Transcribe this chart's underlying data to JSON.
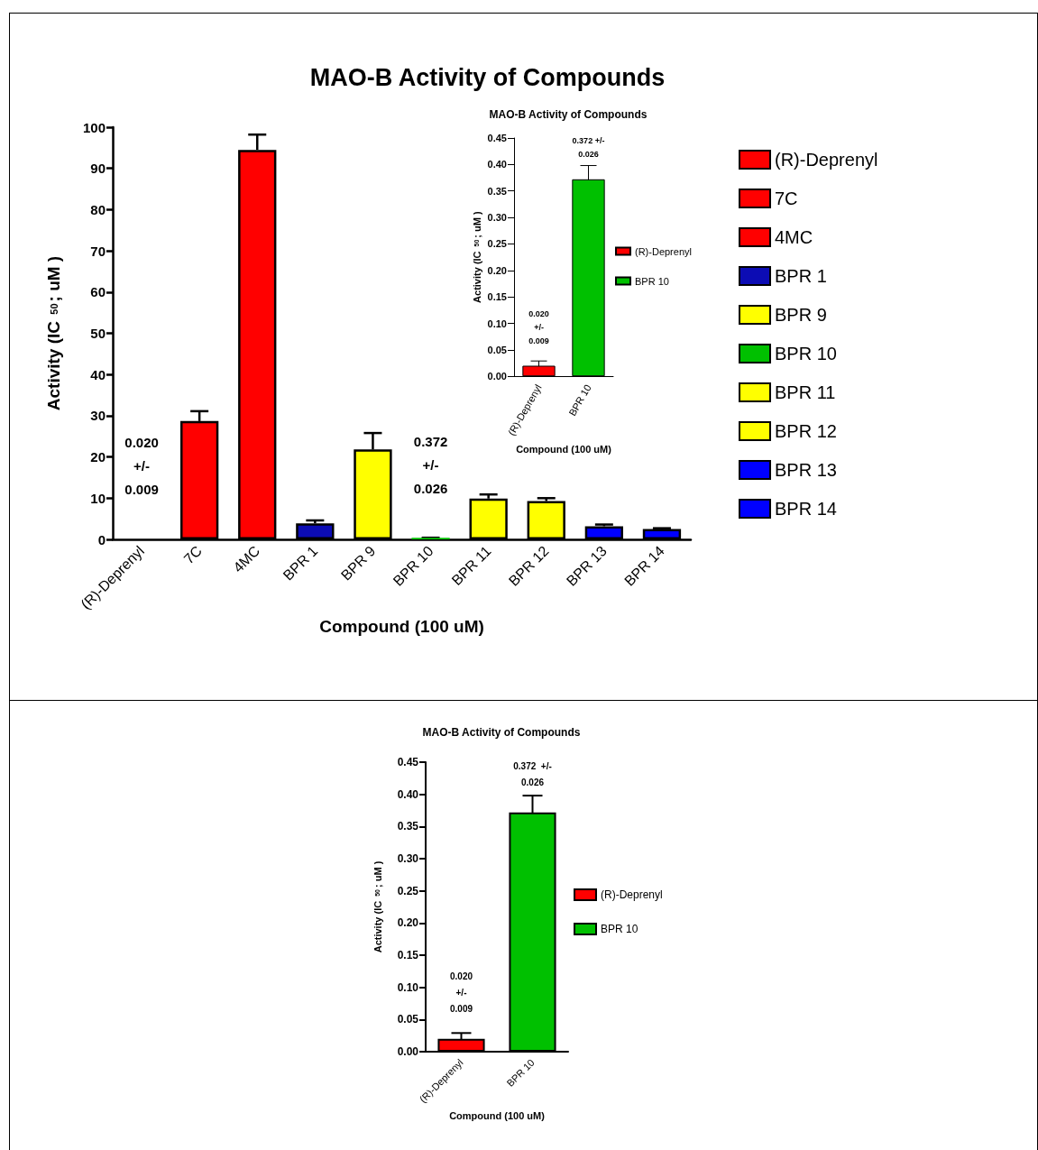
{
  "chart_data": [
    {
      "type": "bar",
      "title": "MAO-B Activity of Compounds",
      "xlabel": "Compound (100 uM)",
      "ylabel": "Activity (IC $_{50}$; uM )",
      "categories": [
        "(R)-Deprenyl",
        "7C",
        "4MC",
        "BPR 1",
        "BPR 9",
        "BPR 10",
        "BPR 11",
        "BPR 12",
        "BPR 13",
        "BPR 14"
      ],
      "stacked": true,
      "series": [
        {
          "name": "(R)-Deprenyl",
          "color": "#ff0000",
          "values": [
            0.02,
            null,
            null,
            null,
            null,
            null,
            null,
            null,
            null,
            null
          ],
          "value_labels": [
            "0.020\n+/-\n0.009",
            null,
            null,
            null,
            null,
            null,
            null,
            null,
            null,
            null
          ]
        },
        {
          "name": "7C",
          "color": "#ff0000",
          "values": [
            null,
            28.7,
            null,
            null,
            null,
            null,
            null,
            null,
            null,
            null
          ],
          "errors": [
            null,
            [
              28.7,
              31.1
            ],
            null,
            null,
            null,
            null,
            null,
            null,
            null,
            null
          ]
        },
        {
          "name": "4MC",
          "color": "#ff0000",
          "values": [
            null,
            null,
            94.5,
            null,
            null,
            null,
            null,
            null,
            null,
            null
          ],
          "errors": [
            null,
            null,
            [
              94.5,
              98.2
            ],
            null,
            null,
            null,
            null,
            null,
            null,
            null
          ]
        },
        {
          "name": "BPR 1",
          "color": "#0c0cb4",
          "values": [
            null,
            null,
            null,
            3.9,
            null,
            null,
            null,
            null,
            null,
            null
          ],
          "errors": [
            null,
            null,
            null,
            [
              3.9,
              4.6
            ],
            null,
            null,
            null,
            null,
            null,
            null
          ]
        },
        {
          "name": "BPR 9",
          "color": "#ffff00",
          "values": [
            null,
            null,
            null,
            null,
            21.8,
            null,
            null,
            null,
            null,
            null
          ],
          "errors": [
            null,
            null,
            null,
            null,
            [
              21.8,
              25.8
            ],
            null,
            null,
            null,
            null,
            null
          ]
        },
        {
          "name": "BPR 10",
          "color": "#00c000",
          "values": [
            null,
            null,
            null,
            null,
            null,
            0.372,
            null,
            null,
            null,
            null
          ],
          "errors": [
            null,
            null,
            null,
            null,
            null,
            0.026,
            null,
            null,
            null,
            null
          ],
          "value_labels": [
            null,
            null,
            null,
            null,
            null,
            "0.372\n+/-\n0.026",
            null,
            null,
            null,
            null
          ]
        },
        {
          "name": "BPR 11",
          "color": "#ffff00",
          "values": [
            null,
            null,
            null,
            null,
            null,
            null,
            9.9,
            null,
            null,
            null
          ],
          "errors": [
            null,
            null,
            null,
            null,
            null,
            null,
            [
              9.9,
              10.9
            ],
            null,
            null,
            null
          ]
        },
        {
          "name": "BPR 12",
          "color": "#ffff00",
          "values": [
            null,
            null,
            null,
            null,
            null,
            null,
            null,
            9.3,
            null,
            null
          ],
          "errors": [
            null,
            null,
            null,
            null,
            null,
            null,
            null,
            [
              9.3,
              10.0
            ],
            null,
            null
          ]
        },
        {
          "name": "BPR 13",
          "color": "#0000ff",
          "values": [
            null,
            null,
            null,
            null,
            null,
            null,
            null,
            null,
            3.2,
            null
          ],
          "errors": [
            null,
            null,
            null,
            null,
            null,
            null,
            null,
            null,
            [
              3.2,
              3.6
            ],
            null
          ]
        },
        {
          "name": "BPR 14",
          "color": "#0000ff",
          "values": [
            null,
            null,
            null,
            null,
            null,
            null,
            null,
            null,
            null,
            2.5
          ],
          "errors": [
            null,
            null,
            null,
            null,
            null,
            null,
            null,
            null,
            null,
            [
              2.5,
              2.7
            ]
          ]
        }
      ],
      "ylim": [
        0,
        100
      ],
      "yticks": [
        0,
        10,
        20,
        30,
        40,
        50,
        60,
        70,
        80,
        90,
        100
      ],
      "legend": "right"
    },
    {
      "type": "bar",
      "title": "MAO-B Activity of Compounds",
      "xlabel": "Compound (100 uM)",
      "ylabel": "Activity (IC $_{50}$; uM )",
      "categories": [
        "(R)-Deprenyl",
        "BPR 10"
      ],
      "stacked": true,
      "series": [
        {
          "name": "(R)-Deprenyl",
          "color": "#ff0000",
          "values": [
            0.02,
            null
          ],
          "errors": [
            0.009,
            null
          ],
          "value_labels": [
            "0.020\n+/-\n0.009",
            null
          ]
        },
        {
          "name": "BPR 10",
          "color": "#00c000",
          "values": [
            null,
            0.372
          ],
          "errors": [
            null,
            0.026
          ],
          "value_labels": [
            null,
            "0.372 +/-\n0.026"
          ]
        }
      ],
      "ylim": [
        0,
        0.45
      ],
      "yticks": [
        {
          "value": 0,
          "label": "0.00"
        },
        {
          "value": 0.05,
          "label": "0.05"
        },
        {
          "value": 0.1,
          "label": "0.10"
        },
        {
          "value": 0.15,
          "label": "0.15"
        },
        {
          "value": 0.2,
          "label": "0.20"
        },
        {
          "value": 0.25,
          "label": "0.25"
        },
        {
          "value": 0.3,
          "label": "0.30"
        },
        {
          "value": 0.35,
          "label": "0.35"
        },
        {
          "value": 0.4,
          "label": "0.40"
        },
        {
          "value": 0.45,
          "label": "0.45"
        }
      ],
      "legend": "right"
    },
    {
      "type": "bar",
      "title": "MAO-B Activity of Compounds",
      "xlabel": "Compound (100 uM)",
      "ylabel": "Activity (IC $_{50}$; uM )",
      "categories": [
        "(R)-Deprenyl",
        "BPR 10"
      ],
      "stacked": true,
      "series": [
        {
          "name": "(R)-Deprenyl",
          "color": "#ff0000",
          "values": [
            0.02,
            null
          ],
          "errors": [
            0.009,
            null
          ],
          "value_labels": [
            "0.020\n+/-\n0.009",
            null
          ]
        },
        {
          "name": "BPR 10",
          "color": "#00c000",
          "values": [
            null,
            0.372
          ],
          "errors": [
            null,
            0.026
          ],
          "value_labels": [
            null,
            "0.372  +/-\n0.026"
          ]
        }
      ],
      "ylim": [
        0,
        0.45
      ],
      "yticks": [
        {
          "value": 0,
          "label": "0.00"
        },
        {
          "value": 0.05,
          "label": "0.05"
        },
        {
          "value": 0.1,
          "label": "0.10"
        },
        {
          "value": 0.15,
          "label": "0.15"
        },
        {
          "value": 0.2,
          "label": "0.20"
        },
        {
          "value": 0.25,
          "label": "0.25"
        },
        {
          "value": 0.3,
          "label": "0.30"
        },
        {
          "value": 0.35,
          "label": "0.35"
        },
        {
          "value": 0.4,
          "label": "0.40"
        },
        {
          "value": 0.45,
          "label": "0.45"
        }
      ],
      "legend": "right"
    }
  ]
}
